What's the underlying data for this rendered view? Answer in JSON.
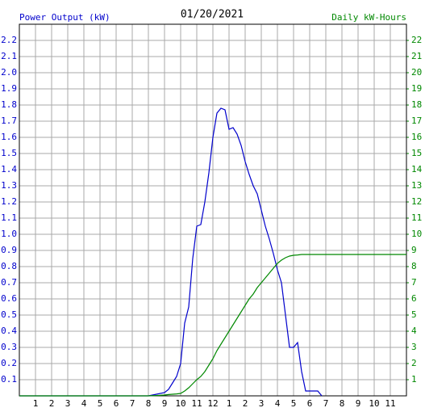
{
  "chart_data": {
    "type": "line",
    "title": "01/20/2021",
    "y_label": "Power Output (kW)",
    "y2_label": "Daily kW-Hours",
    "x": [
      0,
      8,
      8.5,
      9,
      9.25,
      9.5,
      9.75,
      10,
      10.25,
      10.5,
      10.75,
      11,
      11.25,
      11.5,
      11.75,
      12,
      12.25,
      12.5,
      12.75,
      13,
      13.25,
      13.5,
      13.75,
      14,
      14.25,
      14.5,
      14.75,
      15,
      15.25,
      15.5,
      15.75,
      16,
      16.25,
      16.5,
      16.75,
      17,
      17.25,
      17.5,
      17.75,
      18,
      18.5,
      18.75,
      24
    ],
    "series": [
      {
        "name": "Power Output (kW)",
        "color": "#0000cc",
        "axis": "y",
        "values": [
          0,
          0,
          0.01,
          0.02,
          0.04,
          0.08,
          0.12,
          0.2,
          0.45,
          0.55,
          0.85,
          1.05,
          1.06,
          1.2,
          1.38,
          1.6,
          1.75,
          1.78,
          1.77,
          1.65,
          1.66,
          1.62,
          1.55,
          1.45,
          1.37,
          1.3,
          1.25,
          1.15,
          1.05,
          0.97,
          0.88,
          0.78,
          0.7,
          0.5,
          0.3,
          0.3,
          0.33,
          0.15,
          0.03,
          0.03,
          0.03,
          0,
          null
        ]
      },
      {
        "name": "Daily kW-Hours",
        "color": "#008800",
        "axis": "y2",
        "values": [
          0,
          0,
          0.02,
          0.05,
          0.08,
          0.1,
          0.12,
          0.15,
          0.3,
          0.5,
          0.75,
          1.0,
          1.2,
          1.5,
          1.9,
          2.3,
          2.8,
          3.2,
          3.6,
          4.0,
          4.4,
          4.8,
          5.2,
          5.6,
          6.0,
          6.3,
          6.7,
          7.0,
          7.3,
          7.6,
          7.9,
          8.2,
          8.4,
          8.55,
          8.65,
          8.7,
          8.72,
          8.75,
          8.75,
          8.75,
          8.75,
          8.75,
          8.75
        ]
      }
    ],
    "xlim": [
      0,
      24
    ],
    "xticks": [
      1,
      2,
      3,
      4,
      5,
      6,
      7,
      8,
      9,
      10,
      11,
      12,
      {
        "value": 13,
        "label": "1"
      },
      {
        "value": 14,
        "label": "2"
      },
      {
        "value": 15,
        "label": "3"
      },
      {
        "value": 16,
        "label": "4"
      },
      {
        "value": 17,
        "label": "5"
      },
      {
        "value": 18,
        "label": "6"
      },
      {
        "value": 19,
        "label": "7"
      },
      {
        "value": 20,
        "label": "8"
      },
      {
        "value": 21,
        "label": "9"
      },
      {
        "value": 22,
        "label": "10"
      },
      {
        "value": 23,
        "label": "11"
      }
    ],
    "ylim": [
      0,
      2.3
    ],
    "yticks": [
      0.1,
      0.2,
      0.3,
      0.4,
      0.5,
      0.6,
      0.7,
      0.8,
      0.9,
      {
        "value": 1,
        "label": "1.0"
      },
      1.1,
      1.2,
      1.3,
      1.4,
      1.5,
      1.6,
      1.7,
      1.8,
      1.9,
      {
        "value": 2,
        "label": "2.0"
      },
      2.1,
      2.2
    ],
    "y2lim": [
      0,
      23
    ],
    "y2ticks": [
      1,
      2,
      3,
      4,
      5,
      6,
      7,
      8,
      9,
      10,
      11,
      12,
      13,
      14,
      15,
      16,
      17,
      18,
      19,
      20,
      21,
      22
    ],
    "grid": true
  }
}
